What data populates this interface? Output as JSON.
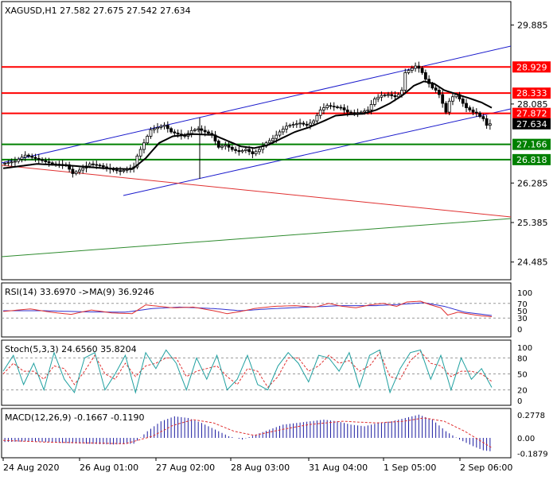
{
  "symbol_header": "XAGUSD,H1  27.582 27.675 27.542 27.634",
  "colors": {
    "background": "#ffffff",
    "candle": "#000000",
    "ma": "#000000",
    "channel": "#1a1acc",
    "resistance": "#ff0000",
    "support": "#008000",
    "trend_red": "#e03030",
    "trend_green": "#2e8b2e",
    "price_tag": "#000000",
    "rsi_line": "#e03030",
    "rsi_ma": "#3030d0",
    "stoch_main": "#20a0a0",
    "stoch_signal": "#e03030",
    "macd_hist": "#1a1aa0",
    "macd_signal": "#e03030",
    "level_line": "#999999"
  },
  "price_axis": {
    "ticks": [
      "29.885",
      "28.085",
      "26.285",
      "25.385",
      "24.485"
    ],
    "tick_values": [
      29.885,
      28.085,
      26.285,
      25.385,
      24.485
    ],
    "range": [
      24.1,
      30.4
    ]
  },
  "horizontal_levels": [
    {
      "label": "28.929",
      "value": 28.929,
      "kind": "resistance"
    },
    {
      "label": "28.333",
      "value": 28.333,
      "kind": "resistance"
    },
    {
      "label": "27.872",
      "value": 27.872,
      "kind": "resistance"
    },
    {
      "label": "27.166",
      "value": 27.166,
      "kind": "support"
    },
    {
      "label": "26.818",
      "value": 26.818,
      "kind": "support"
    }
  ],
  "current_price": {
    "label": "27.634",
    "value": 27.634
  },
  "time_axis": {
    "labels": [
      "24 Aug 2020",
      "26 Aug 01:00",
      "27 Aug 02:00",
      "28 Aug 03:00",
      "31 Aug 04:00",
      "1 Sep 05:00",
      "2 Sep 06:00"
    ]
  },
  "rsi_panel": {
    "header": "RSI(14) 33.6970  ->MA(9) 36.9246",
    "levels": [
      "100",
      "70",
      "50",
      "30",
      "0"
    ],
    "level_values": [
      100,
      70,
      50,
      30,
      0
    ]
  },
  "stoch_panel": {
    "header": "Stoch(5,3,3) 24.6560 35.8204",
    "levels": [
      "100",
      "80",
      "50",
      "20",
      "0"
    ],
    "level_values": [
      100,
      80,
      50,
      20,
      0
    ]
  },
  "macd_panel": {
    "header": "MACD(12,26,9) -0.1667 -0.1190",
    "levels": [
      "0.2778",
      "0.00",
      "-0.1879"
    ],
    "level_values": [
      0.2778,
      0.0,
      -0.1879
    ]
  },
  "chart_data": {
    "type": "candlestick",
    "title": "XAGUSD,H1",
    "ohlc_last": {
      "open": 27.582,
      "high": 27.675,
      "low": 27.542,
      "close": 27.634
    },
    "ylim": [
      24.1,
      30.4
    ],
    "price_path": [
      [
        0,
        26.72
      ],
      [
        4,
        26.78
      ],
      [
        7,
        26.92
      ],
      [
        11,
        26.82
      ],
      [
        15,
        26.72
      ],
      [
        19,
        26.7
      ],
      [
        21,
        26.5
      ],
      [
        23,
        26.58
      ],
      [
        26,
        26.72
      ],
      [
        29,
        26.68
      ],
      [
        32,
        26.6
      ],
      [
        35,
        26.55
      ],
      [
        37,
        26.6
      ],
      [
        39,
        26.65
      ],
      [
        40,
        26.9
      ],
      [
        42,
        27.2
      ],
      [
        44,
        27.5
      ],
      [
        46,
        27.55
      ],
      [
        48,
        27.6
      ],
      [
        50,
        27.45
      ],
      [
        52,
        27.4
      ],
      [
        54,
        27.35
      ],
      [
        56,
        27.48
      ],
      [
        58,
        27.52
      ],
      [
        60,
        27.45
      ],
      [
        62,
        27.38
      ],
      [
        64,
        27.1
      ],
      [
        66,
        27.15
      ],
      [
        68,
        27.05
      ],
      [
        70,
        27.0
      ],
      [
        72,
        27.05
      ],
      [
        74,
        26.95
      ],
      [
        76,
        27.05
      ],
      [
        78,
        27.2
      ],
      [
        80,
        27.3
      ],
      [
        82,
        27.45
      ],
      [
        84,
        27.58
      ],
      [
        86,
        27.62
      ],
      [
        88,
        27.65
      ],
      [
        90,
        27.6
      ],
      [
        92,
        27.7
      ],
      [
        94,
        27.95
      ],
      [
        96,
        28.05
      ],
      [
        98,
        28.02
      ],
      [
        100,
        28.0
      ],
      [
        102,
        27.9
      ],
      [
        104,
        27.88
      ],
      [
        106,
        27.9
      ],
      [
        108,
        27.95
      ],
      [
        110,
        28.2
      ],
      [
        112,
        28.28
      ],
      [
        114,
        28.3
      ],
      [
        116,
        28.25
      ],
      [
        117,
        28.3
      ],
      [
        118,
        28.4
      ],
      [
        119,
        28.8
      ],
      [
        120,
        28.85
      ],
      [
        121,
        28.9
      ],
      [
        122,
        28.95
      ],
      [
        123,
        28.9
      ],
      [
        124,
        28.8
      ],
      [
        125,
        28.65
      ],
      [
        126,
        28.55
      ],
      [
        127,
        28.45
      ],
      [
        128,
        28.4
      ],
      [
        129,
        28.3
      ],
      [
        130,
        28.1
      ],
      [
        131,
        27.9
      ],
      [
        132,
        28.15
      ],
      [
        133,
        28.25
      ],
      [
        134,
        28.3
      ],
      [
        135,
        28.2
      ],
      [
        136,
        28.1
      ],
      [
        137,
        28.0
      ],
      [
        138,
        27.95
      ],
      [
        139,
        27.9
      ],
      [
        140,
        27.88
      ],
      [
        141,
        27.8
      ],
      [
        142,
        27.75
      ],
      [
        143,
        27.6
      ],
      [
        144,
        27.634
      ]
    ],
    "ma_path": [
      [
        0,
        26.62
      ],
      [
        10,
        26.72
      ],
      [
        20,
        26.68
      ],
      [
        30,
        26.62
      ],
      [
        38,
        26.6
      ],
      [
        42,
        26.85
      ],
      [
        46,
        27.2
      ],
      [
        50,
        27.35
      ],
      [
        56,
        27.4
      ],
      [
        62,
        27.38
      ],
      [
        66,
        27.25
      ],
      [
        70,
        27.12
      ],
      [
        74,
        27.08
      ],
      [
        78,
        27.15
      ],
      [
        82,
        27.3
      ],
      [
        86,
        27.45
      ],
      [
        90,
        27.55
      ],
      [
        94,
        27.68
      ],
      [
        98,
        27.82
      ],
      [
        102,
        27.85
      ],
      [
        106,
        27.86
      ],
      [
        110,
        27.95
      ],
      [
        114,
        28.1
      ],
      [
        118,
        28.3
      ],
      [
        121,
        28.5
      ],
      [
        124,
        28.6
      ],
      [
        127,
        28.55
      ],
      [
        130,
        28.4
      ],
      [
        134,
        28.3
      ],
      [
        138,
        28.2
      ],
      [
        141,
        28.12
      ],
      [
        144,
        28.0
      ]
    ],
    "rsi_path": [
      [
        0,
        48
      ],
      [
        8,
        55
      ],
      [
        14,
        46
      ],
      [
        20,
        40
      ],
      [
        26,
        52
      ],
      [
        32,
        44
      ],
      [
        38,
        42
      ],
      [
        42,
        66
      ],
      [
        46,
        62
      ],
      [
        50,
        58
      ],
      [
        56,
        60
      ],
      [
        62,
        50
      ],
      [
        66,
        42
      ],
      [
        70,
        48
      ],
      [
        74,
        56
      ],
      [
        80,
        62
      ],
      [
        86,
        64
      ],
      [
        92,
        60
      ],
      [
        96,
        70
      ],
      [
        100,
        62
      ],
      [
        104,
        58
      ],
      [
        108,
        66
      ],
      [
        112,
        70
      ],
      [
        116,
        62
      ],
      [
        119,
        74
      ],
      [
        123,
        76
      ],
      [
        126,
        66
      ],
      [
        129,
        58
      ],
      [
        131,
        38
      ],
      [
        134,
        46
      ],
      [
        138,
        40
      ],
      [
        141,
        36
      ],
      [
        144,
        33.697
      ]
    ],
    "rsi_ma_path": [
      [
        0,
        50
      ],
      [
        12,
        50
      ],
      [
        24,
        47
      ],
      [
        36,
        46
      ],
      [
        44,
        56
      ],
      [
        52,
        60
      ],
      [
        62,
        56
      ],
      [
        70,
        50
      ],
      [
        80,
        56
      ],
      [
        90,
        60
      ],
      [
        100,
        64
      ],
      [
        110,
        64
      ],
      [
        118,
        68
      ],
      [
        124,
        72
      ],
      [
        130,
        62
      ],
      [
        136,
        46
      ],
      [
        144,
        36.9246
      ]
    ],
    "stoch_path": [
      [
        0,
        55
      ],
      [
        3,
        85
      ],
      [
        6,
        30
      ],
      [
        9,
        70
      ],
      [
        12,
        20
      ],
      [
        15,
        90
      ],
      [
        18,
        40
      ],
      [
        21,
        15
      ],
      [
        24,
        80
      ],
      [
        27,
        90
      ],
      [
        30,
        20
      ],
      [
        33,
        50
      ],
      [
        36,
        85
      ],
      [
        39,
        15
      ],
      [
        42,
        90
      ],
      [
        45,
        60
      ],
      [
        48,
        95
      ],
      [
        51,
        70
      ],
      [
        54,
        20
      ],
      [
        57,
        80
      ],
      [
        60,
        40
      ],
      [
        63,
        85
      ],
      [
        66,
        20
      ],
      [
        69,
        40
      ],
      [
        72,
        85
      ],
      [
        75,
        30
      ],
      [
        78,
        20
      ],
      [
        81,
        65
      ],
      [
        84,
        90
      ],
      [
        87,
        70
      ],
      [
        90,
        35
      ],
      [
        93,
        85
      ],
      [
        96,
        80
      ],
      [
        99,
        55
      ],
      [
        102,
        90
      ],
      [
        105,
        25
      ],
      [
        108,
        85
      ],
      [
        111,
        95
      ],
      [
        114,
        15
      ],
      [
        117,
        60
      ],
      [
        120,
        90
      ],
      [
        123,
        95
      ],
      [
        126,
        40
      ],
      [
        129,
        85
      ],
      [
        132,
        20
      ],
      [
        135,
        80
      ],
      [
        138,
        40
      ],
      [
        141,
        60
      ],
      [
        144,
        24.656
      ]
    ],
    "stoch_signal_path": [
      [
        0,
        50
      ],
      [
        3,
        70
      ],
      [
        6,
        55
      ],
      [
        9,
        55
      ],
      [
        12,
        40
      ],
      [
        15,
        65
      ],
      [
        18,
        60
      ],
      [
        21,
        30
      ],
      [
        24,
        55
      ],
      [
        27,
        85
      ],
      [
        30,
        50
      ],
      [
        33,
        40
      ],
      [
        36,
        70
      ],
      [
        39,
        45
      ],
      [
        42,
        65
      ],
      [
        45,
        70
      ],
      [
        48,
        80
      ],
      [
        51,
        80
      ],
      [
        54,
        45
      ],
      [
        57,
        55
      ],
      [
        60,
        60
      ],
      [
        63,
        65
      ],
      [
        66,
        45
      ],
      [
        69,
        30
      ],
      [
        72,
        60
      ],
      [
        75,
        55
      ],
      [
        78,
        25
      ],
      [
        81,
        45
      ],
      [
        84,
        80
      ],
      [
        87,
        80
      ],
      [
        90,
        55
      ],
      [
        93,
        65
      ],
      [
        96,
        85
      ],
      [
        99,
        70
      ],
      [
        102,
        75
      ],
      [
        105,
        55
      ],
      [
        108,
        65
      ],
      [
        111,
        90
      ],
      [
        114,
        45
      ],
      [
        117,
        40
      ],
      [
        120,
        75
      ],
      [
        123,
        92
      ],
      [
        126,
        70
      ],
      [
        129,
        65
      ],
      [
        132,
        45
      ],
      [
        135,
        55
      ],
      [
        138,
        55
      ],
      [
        141,
        50
      ],
      [
        144,
        35.8204
      ]
    ],
    "macd_hist_path": [
      [
        0,
        -0.05
      ],
      [
        8,
        -0.04
      ],
      [
        16,
        -0.06
      ],
      [
        24,
        -0.07
      ],
      [
        32,
        -0.08
      ],
      [
        38,
        -0.07
      ],
      [
        42,
        0.08
      ],
      [
        46,
        0.2
      ],
      [
        50,
        0.26
      ],
      [
        54,
        0.24
      ],
      [
        58,
        0.18
      ],
      [
        62,
        0.1
      ],
      [
        66,
        0.02
      ],
      [
        70,
        -0.02
      ],
      [
        74,
        0.04
      ],
      [
        78,
        0.1
      ],
      [
        82,
        0.16
      ],
      [
        86,
        0.18
      ],
      [
        90,
        0.2
      ],
      [
        94,
        0.22
      ],
      [
        98,
        0.2
      ],
      [
        102,
        0.16
      ],
      [
        106,
        0.14
      ],
      [
        110,
        0.18
      ],
      [
        114,
        0.2
      ],
      [
        118,
        0.24
      ],
      [
        122,
        0.28
      ],
      [
        126,
        0.22
      ],
      [
        130,
        0.08
      ],
      [
        134,
        -0.02
      ],
      [
        138,
        -0.1
      ],
      [
        141,
        -0.15
      ],
      [
        144,
        -0.1667
      ]
    ],
    "macd_signal_path": [
      [
        0,
        -0.03
      ],
      [
        12,
        -0.05
      ],
      [
        24,
        -0.06
      ],
      [
        36,
        -0.07
      ],
      [
        44,
        0.02
      ],
      [
        50,
        0.15
      ],
      [
        56,
        0.22
      ],
      [
        62,
        0.18
      ],
      [
        68,
        0.08
      ],
      [
        74,
        0.03
      ],
      [
        82,
        0.1
      ],
      [
        90,
        0.16
      ],
      [
        100,
        0.2
      ],
      [
        110,
        0.18
      ],
      [
        118,
        0.2
      ],
      [
        124,
        0.24
      ],
      [
        130,
        0.2
      ],
      [
        136,
        0.08
      ],
      [
        144,
        -0.119
      ]
    ]
  }
}
